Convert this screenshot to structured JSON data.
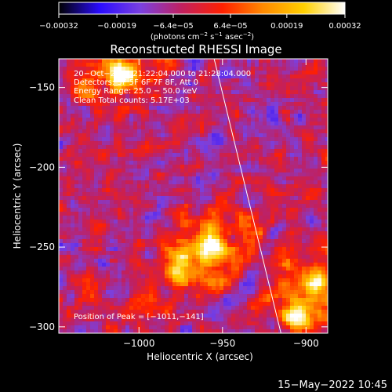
{
  "chart_data": {
    "type": "heatmap",
    "title": "Reconstructed RHESSI Image",
    "xlabel": "Heliocentric X (arcsec)",
    "ylabel": "Heliocentric Y (arcsec)",
    "xlim": [
      -1048,
      -887
    ],
    "ylim": [
      -304,
      -132
    ],
    "x_ticks": [
      -1000,
      -950,
      -900
    ],
    "y_ticks": [
      -150,
      -200,
      -250,
      -300
    ],
    "x_tick_labels": [
      "−1000",
      "−950",
      "−900"
    ],
    "y_tick_labels": [
      "−150",
      "−200",
      "−250",
      "−300"
    ],
    "colorbar": {
      "range": [
        -0.00032,
        0.00032
      ],
      "tick_values": [
        -0.00032,
        -0.00019,
        -6.4e-05,
        6.4e-05,
        0.00019,
        0.00032
      ],
      "tick_labels": [
        "−0.00032",
        "−0.00019",
        "−6.4e−05",
        "6.4e−05",
        "0.00019",
        "0.00032"
      ],
      "units_text": "(photons cm",
      "units_exp1": "−2",
      "units_mid": " s",
      "units_exp2": "−1",
      "units_mid2": " asec",
      "units_exp3": "−2",
      "units_end": ")",
      "colormap": [
        "#000000",
        "#2a0cff",
        "#7a40e0",
        "#c02060",
        "#ff2000",
        "#ff8a00",
        "#ffd000",
        "#ffffff"
      ]
    },
    "annotations": [
      "20−Oct−2012 21:22:04.000 to 21:28:04.000",
      "Detectors: 3F 5F 6F 7F 8F, Att 0",
      "Energy Range: 25.0 − 50.0 keV",
      "Clean   Total counts: 5.17E+03"
    ],
    "peak_label": "Position of Peak = [−1011,−141]",
    "peak": [
      -1011,
      -141
    ],
    "limb_line": [
      [
        -955,
        -132
      ],
      [
        -915,
        -304
      ]
    ],
    "sources": [
      {
        "x": -1011,
        "y": -141,
        "strength": 1.0,
        "sigma": 10
      },
      {
        "x": -958,
        "y": -250,
        "strength": 0.85,
        "sigma": 12
      },
      {
        "x": -975,
        "y": -262,
        "strength": 0.55,
        "sigma": 10
      },
      {
        "x": -895,
        "y": -272,
        "strength": 0.7,
        "sigma": 12
      },
      {
        "x": -905,
        "y": -292,
        "strength": 0.7,
        "sigma": 10
      },
      {
        "x": -930,
        "y": -235,
        "strength": 0.35,
        "sigma": 10
      },
      {
        "x": -1035,
        "y": -150,
        "strength": 0.35,
        "sigma": 8
      },
      {
        "x": -1000,
        "y": -290,
        "strength": 0.3,
        "sigma": 10
      },
      {
        "x": -900,
        "y": -210,
        "strength": 0.25,
        "sigma": 8
      },
      {
        "x": -1030,
        "y": -275,
        "strength": 0.25,
        "sigma": 8
      }
    ],
    "grid": false
  },
  "footer": {
    "date": "15−May−2022 10:45"
  }
}
